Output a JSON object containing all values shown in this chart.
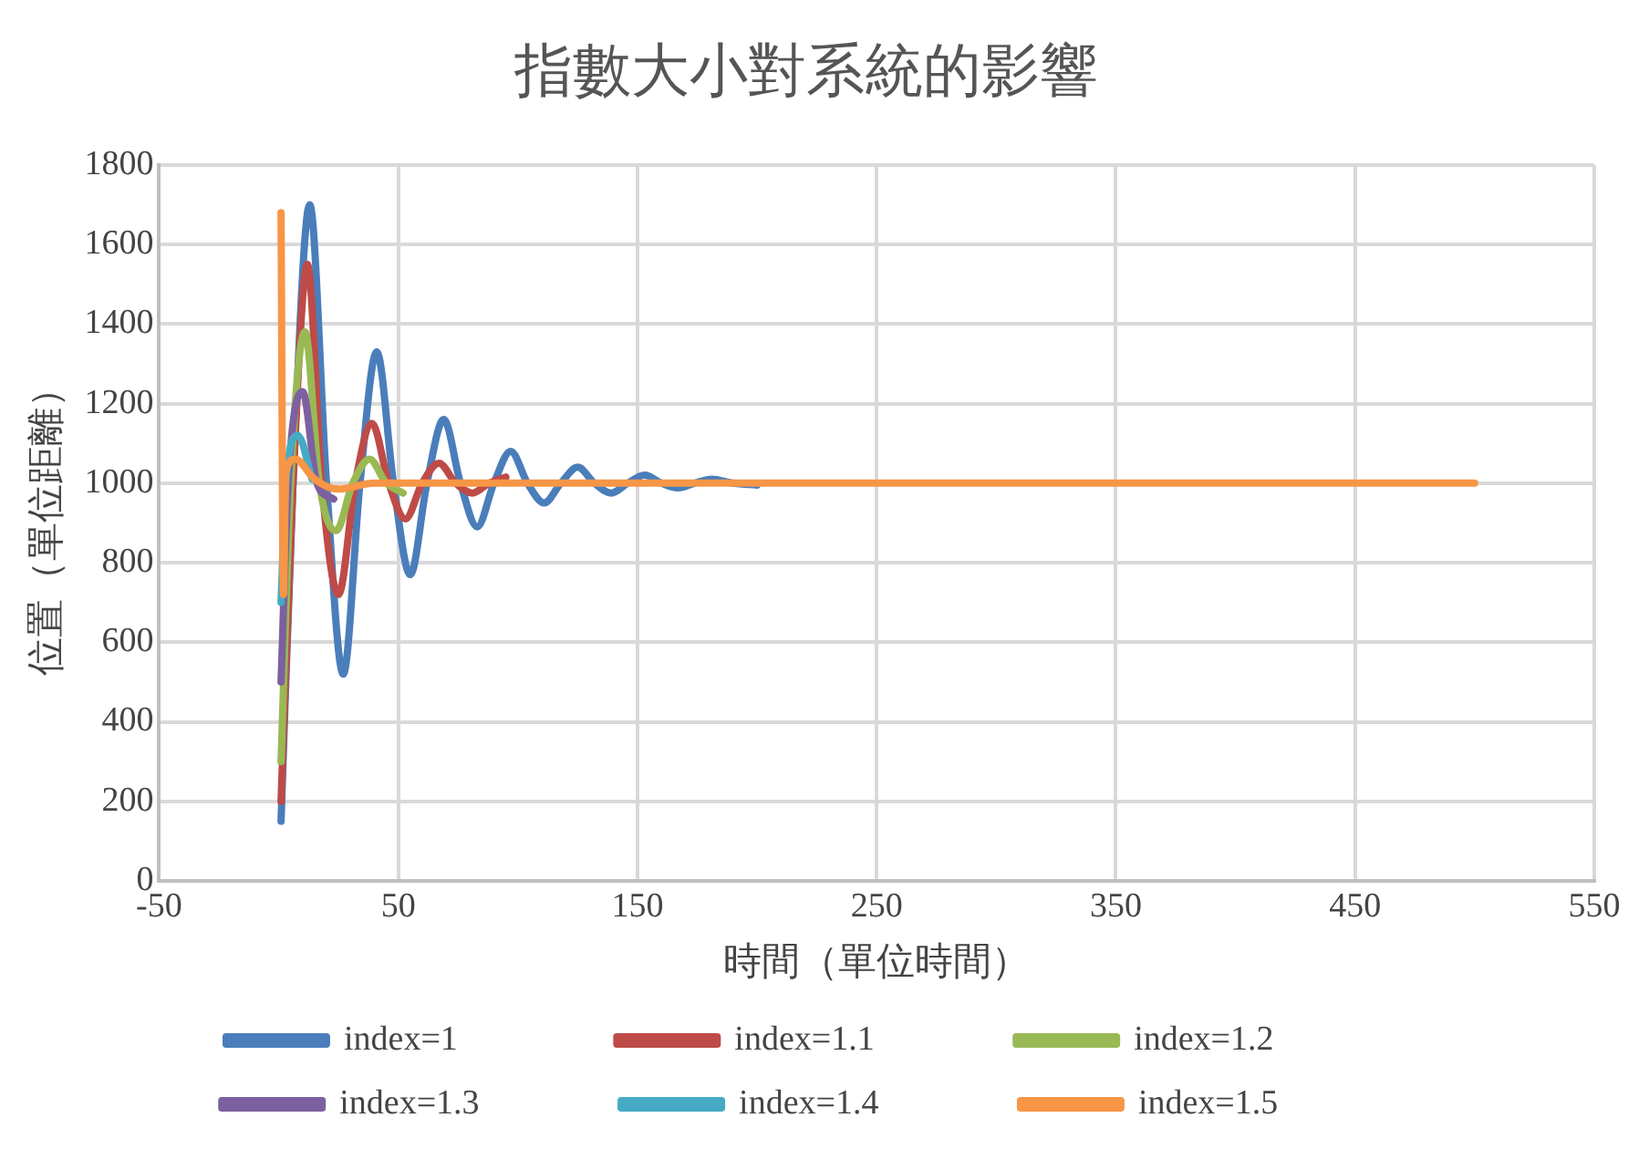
{
  "chart_data": {
    "type": "line",
    "title": "指數大小對系統的影響",
    "xlabel": "時間（單位時間）",
    "ylabel": "位置（單位距離）",
    "xlim": [
      -50,
      550
    ],
    "xticks": [
      -50,
      50,
      150,
      250,
      350,
      450,
      550
    ],
    "ylim": [
      0,
      1800
    ],
    "yticks": [
      0,
      200,
      400,
      600,
      800,
      1000,
      1200,
      1400,
      1600,
      1800
    ],
    "grid": true,
    "legend": "bottom",
    "marker": "none",
    "line_style": "solid",
    "series": [
      {
        "name": "index=1",
        "color": "#4a7ebb",
        "x": [
          1,
          6,
          13,
          20,
          27,
          34,
          41,
          48,
          55,
          62,
          69,
          76,
          83,
          90,
          97,
          104,
          111,
          118,
          125,
          132,
          139,
          146,
          153,
          160,
          167,
          174,
          181,
          190,
          200
        ],
        "values": [
          150,
          1000,
          1700,
          1000,
          520,
          1000,
          1330,
          1000,
          770,
          1000,
          1160,
          1000,
          890,
          1000,
          1080,
          1000,
          950,
          1000,
          1040,
          1000,
          975,
          1000,
          1020,
          1000,
          988,
          1000,
          1010,
          1000,
          995
        ]
      },
      {
        "name": "index=1.1",
        "color": "#be4b48",
        "x": [
          1,
          6,
          12,
          18,
          25,
          32,
          39,
          46,
          53,
          60,
          67,
          74,
          81,
          88,
          95
        ],
        "values": [
          200,
          1000,
          1550,
          1000,
          720,
          1000,
          1150,
          1000,
          910,
          1000,
          1050,
          1000,
          975,
          1000,
          1015
        ]
      },
      {
        "name": "index=1.2",
        "color": "#98b954",
        "x": [
          1,
          5,
          11,
          17,
          24,
          31,
          38,
          45,
          52
        ],
        "values": [
          300,
          1000,
          1380,
          1000,
          880,
          1000,
          1060,
          1000,
          975
        ]
      },
      {
        "name": "index=1.3",
        "color": "#7d60a0",
        "x": [
          1,
          4,
          10,
          16,
          23
        ],
        "values": [
          500,
          1000,
          1230,
          1000,
          960
        ]
      },
      {
        "name": "index=1.4",
        "color": "#46aac5",
        "x": [
          1,
          3,
          8,
          14
        ],
        "values": [
          700,
          1000,
          1120,
          1010
        ]
      },
      {
        "name": "index=1.5",
        "color": "#f79646",
        "x": [
          1,
          2,
          3,
          7,
          15,
          25,
          40,
          150,
          300,
          500
        ],
        "values": [
          1680,
          720,
          1030,
          1060,
          1010,
          985,
          1000,
          1000,
          1000,
          1000
        ]
      }
    ]
  }
}
